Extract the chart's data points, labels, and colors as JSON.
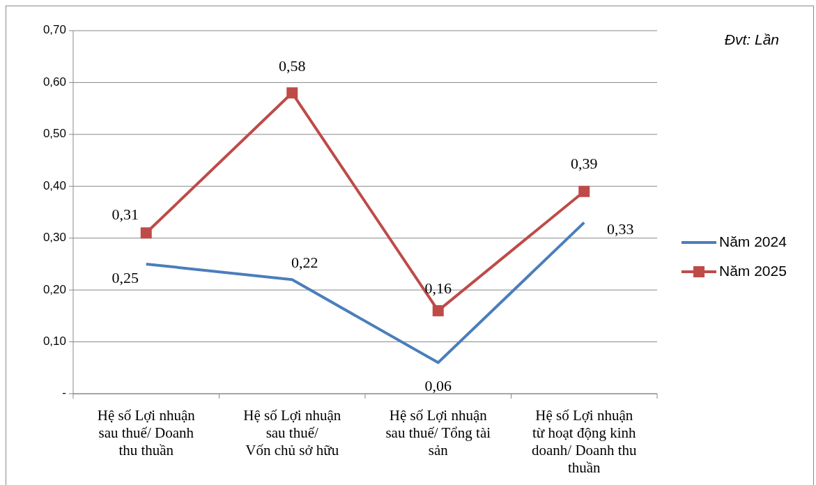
{
  "chart_data": {
    "type": "line",
    "categories": [
      "Hệ số Lợi nhuận\nsau thuế/ Doanh\nthu thuần",
      "Hệ số Lợi nhuận\nsau thuế/\nVốn chủ sở hữu",
      "Hệ số Lợi nhuận\nsau thuế/ Tổng tài\nsản",
      "Hệ số Lợi nhuận\ntừ hoạt động kinh\ndoanh/ Doanh thu\nthuần"
    ],
    "series": [
      {
        "name": "Năm 2024",
        "color": "#4a7ebb",
        "marker": "none",
        "values": [
          0.25,
          0.22,
          0.06,
          0.33
        ],
        "value_labels": [
          "0,25",
          "0,22",
          "0,06",
          "0,33"
        ]
      },
      {
        "name": "Năm 2025",
        "color": "#be4b48",
        "marker": "square",
        "values": [
          0.31,
          0.58,
          0.16,
          0.39
        ],
        "value_labels": [
          "0,31",
          "0,58",
          "0,16",
          "0,39"
        ]
      }
    ],
    "ylim": [
      0,
      0.7
    ],
    "yticks": [
      {
        "value": 0,
        "label": "-"
      },
      {
        "value": 0.1,
        "label": "0,10"
      },
      {
        "value": 0.2,
        "label": "0,20"
      },
      {
        "value": 0.3,
        "label": "0,30"
      },
      {
        "value": 0.4,
        "label": "0,40"
      },
      {
        "value": 0.5,
        "label": "0,50"
      },
      {
        "value": 0.6,
        "label": "0,60"
      },
      {
        "value": 0.7,
        "label": "0,70"
      }
    ],
    "grid": "y",
    "legend": "right",
    "line_style": "solid",
    "annotations": [
      "Đvt: Lần"
    ]
  }
}
